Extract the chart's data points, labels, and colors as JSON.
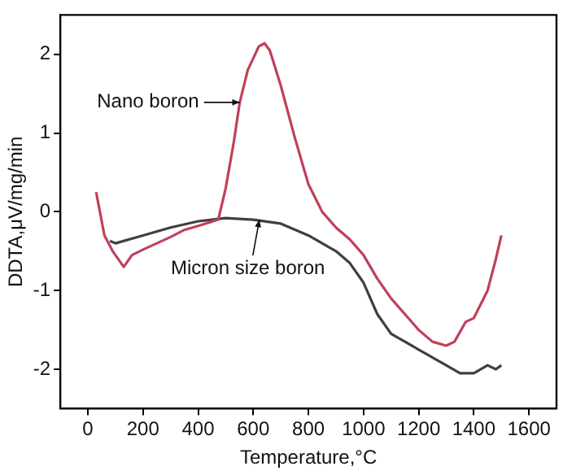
{
  "chart_data": {
    "type": "line",
    "xlabel": "Temperature,°C",
    "ylabel": "DDTA,μV/mg/min",
    "xlim": [
      -100,
      1700
    ],
    "ylim": [
      -2.5,
      2.5
    ],
    "xticks": [
      0,
      200,
      400,
      600,
      800,
      1000,
      1200,
      1400,
      1600
    ],
    "yticks": [
      -2,
      -1,
      0,
      1,
      2
    ],
    "grid": false,
    "legend": false,
    "marker": "none",
    "line_style": "solid",
    "series": [
      {
        "color": "#c0405a",
        "x": [
          30,
          60,
          90,
          130,
          160,
          200,
          250,
          300,
          350,
          400,
          473,
          500,
          530,
          551,
          580,
          620,
          641,
          660,
          700,
          750,
          800,
          850,
          900,
          950,
          1000,
          1050,
          1100,
          1150,
          1200,
          1250,
          1300,
          1330,
          1370,
          1400,
          1450,
          1480,
          1500
        ],
        "values": [
          0.25,
          -0.3,
          -0.5,
          -0.7,
          -0.55,
          -0.48,
          -0.4,
          -0.32,
          -0.23,
          -0.18,
          -0.1,
          0.3,
          0.9,
          1.39,
          1.8,
          2.1,
          2.14,
          2.05,
          1.6,
          0.95,
          0.35,
          0.0,
          -0.2,
          -0.35,
          -0.55,
          -0.85,
          -1.1,
          -1.3,
          -1.5,
          -1.65,
          -1.7,
          -1.65,
          -1.4,
          -1.35,
          -1.0,
          -0.6,
          -0.3
        ]
      },
      {
        "color": "#404040",
        "x": [
          80,
          100,
          200,
          300,
          400,
          500,
          600,
          700,
          800,
          900,
          950,
          1000,
          1050,
          1100,
          1200,
          1300,
          1350,
          1400,
          1450,
          1480,
          1500
        ],
        "values": [
          -0.37,
          -0.4,
          -0.3,
          -0.2,
          -0.12,
          -0.08,
          -0.1,
          -0.15,
          -0.3,
          -0.5,
          -0.65,
          -0.9,
          -1.3,
          -1.55,
          -1.75,
          -1.95,
          -2.05,
          -2.05,
          -1.95,
          -2.0,
          -1.95
        ]
      }
    ],
    "annotations": [
      {
        "text": "Nano boron",
        "x": 551,
        "y": 1.39
      },
      {
        "text": "Micron size boron",
        "x": 622,
        "y": -0.1
      }
    ]
  }
}
